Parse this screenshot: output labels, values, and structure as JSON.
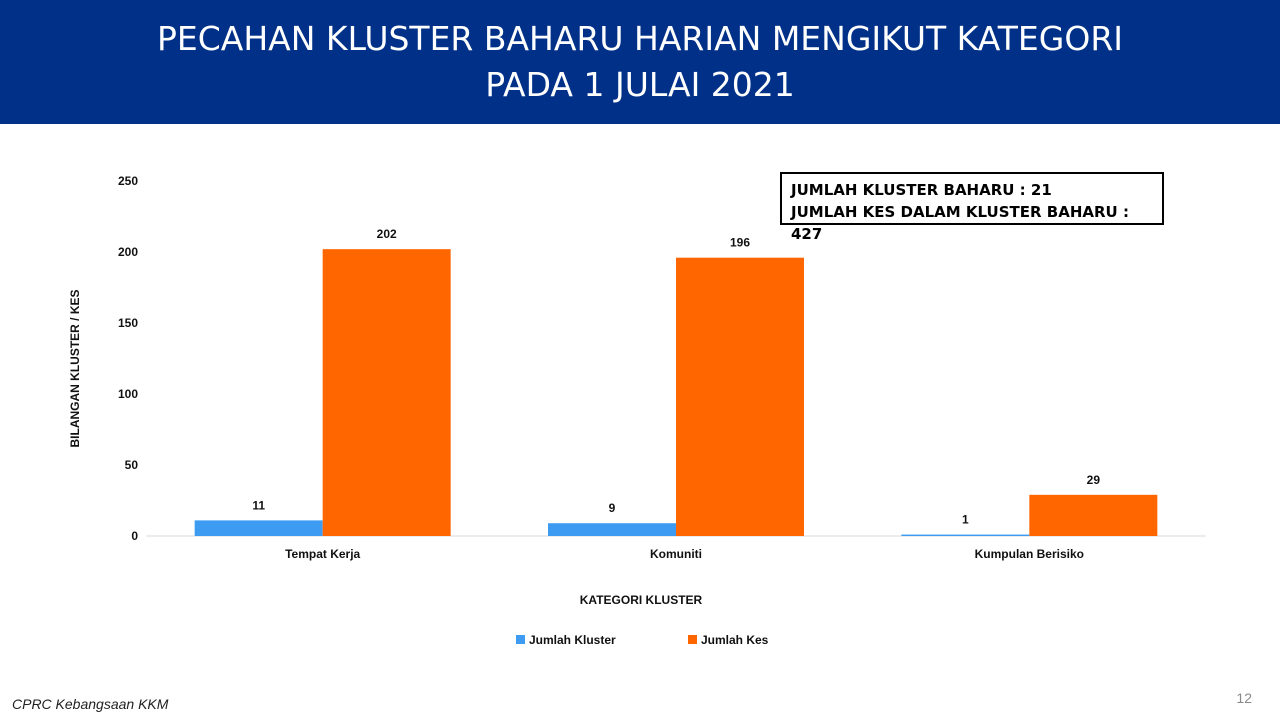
{
  "header": {
    "title_line1": "PECAHAN KLUSTER BAHARU HARIAN MENGIKUT KATEGORI",
    "title_line2": "PADA 1 JULAI 2021"
  },
  "summary": {
    "line1": "JUMLAH KLUSTER BAHARU : 21",
    "line2": "JUMLAH KES DALAM KLUSTER BAHARU : 427"
  },
  "footer": {
    "source": "CPRC Kebangsaan KKM",
    "page_number": "12"
  },
  "colors": {
    "header_bg": "#003087",
    "series_kluster": "#3d9bf2",
    "series_kes": "#ff6600"
  },
  "chart_data": {
    "type": "bar",
    "categories": [
      "Tempat Kerja",
      "Komuniti",
      "Kumpulan Berisiko"
    ],
    "series": [
      {
        "name": "Jumlah Kluster",
        "values": [
          11,
          9,
          1
        ],
        "color": "#3d9bf2"
      },
      {
        "name": "Jumlah Kes",
        "values": [
          202,
          196,
          29
        ],
        "color": "#ff6600"
      }
    ],
    "xlabel": "KATEGORI KLUSTER",
    "ylabel": "BILANGAN KLUSTER / KES",
    "ylim": [
      0,
      250
    ],
    "yticks": [
      0,
      50,
      100,
      150,
      200,
      250
    ],
    "grid": false,
    "legend": "bottom",
    "data_labels": true
  }
}
